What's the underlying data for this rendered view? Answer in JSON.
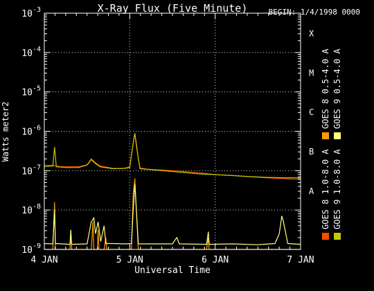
{
  "chart_data": {
    "type": "line",
    "title": "X-Ray Flux (Five Minute)",
    "begin_label": "BEGIN: 1/4/1998 0000",
    "xlabel": "Universal Time",
    "ylabel": "Watts meter2",
    "x_unit": "days since 4 JAN 1998 0000",
    "xlim": [
      0,
      3
    ],
    "x_ticks": [
      {
        "value": 0,
        "label": "4 JAN"
      },
      {
        "value": 1,
        "label": "5 JAN"
      },
      {
        "value": 2,
        "label": "6 JAN"
      },
      {
        "value": 3,
        "label": "7 JAN"
      }
    ],
    "y_scale": "log",
    "ylim_exponent": [
      -9,
      -3
    ],
    "y_ticks": [
      {
        "exp": -9,
        "base": "10",
        "sup": "-9"
      },
      {
        "exp": -8,
        "base": "10",
        "sup": "-8"
      },
      {
        "exp": -7,
        "base": "10",
        "sup": "-7"
      },
      {
        "exp": -6,
        "base": "10",
        "sup": "-6"
      },
      {
        "exp": -5,
        "base": "10",
        "sup": "-5"
      },
      {
        "exp": -4,
        "base": "10",
        "sup": "-4"
      },
      {
        "exp": -3,
        "base": "10",
        "sup": "-3"
      }
    ],
    "flare_classes": [
      {
        "label": "A",
        "exp": -8
      },
      {
        "label": "B",
        "exp": -7
      },
      {
        "label": "C",
        "exp": -6
      },
      {
        "label": "M",
        "exp": -5
      },
      {
        "label": "X",
        "exp": -4
      }
    ],
    "grid": "dotted at decades and day boundaries",
    "legend_placement": "right, vertical",
    "series": [
      {
        "name": "GOES 8 1.0-8.0 A",
        "color": "#ff4a00",
        "points": [
          [
            0,
            -6.86
          ],
          [
            0.1,
            -6.87
          ],
          [
            0.2,
            -6.9
          ],
          [
            0.25,
            -6.9
          ],
          [
            0.4,
            -6.9
          ],
          [
            0.45,
            -6.88
          ],
          [
            0.5,
            -6.85
          ],
          [
            0.55,
            -6.7
          ],
          [
            0.6,
            -6.8
          ],
          [
            0.65,
            -6.88
          ],
          [
            0.8,
            -6.94
          ],
          [
            0.9,
            -6.95
          ],
          [
            0.95,
            -6.93
          ],
          [
            1.0,
            -6.9
          ],
          [
            1.04,
            -6.3
          ],
          [
            1.06,
            -6.05
          ],
          [
            1.08,
            -6.35
          ],
          [
            1.1,
            -6.7
          ],
          [
            1.12,
            -6.93
          ],
          [
            1.2,
            -6.96
          ],
          [
            1.5,
            -7.0
          ],
          [
            1.8,
            -7.05
          ],
          [
            2.0,
            -7.1
          ],
          [
            2.2,
            -7.12
          ],
          [
            2.4,
            -7.15
          ],
          [
            2.6,
            -7.18
          ],
          [
            2.8,
            -7.2
          ],
          [
            2.95,
            -7.22
          ],
          [
            3.0,
            -7.2
          ]
        ]
      },
      {
        "name": "GOES 8 0.5-4.0 A",
        "color": "#ff9a00",
        "points": [
          [
            0,
            -9.0
          ],
          [
            0.1,
            -9.0
          ],
          [
            0.12,
            -7.8
          ],
          [
            0.13,
            -9.0
          ],
          [
            0.3,
            -9.0
          ],
          [
            0.31,
            -8.6
          ],
          [
            0.32,
            -9.0
          ],
          [
            0.55,
            -9.0
          ],
          [
            0.57,
            -8.3
          ],
          [
            0.58,
            -9.0
          ],
          [
            0.62,
            -9.0
          ],
          [
            0.63,
            -8.5
          ],
          [
            0.64,
            -9.0
          ],
          [
            0.7,
            -9.0
          ],
          [
            0.72,
            -8.7
          ],
          [
            0.73,
            -9.0
          ],
          [
            1.02,
            -9.0
          ],
          [
            1.04,
            -7.6
          ],
          [
            1.06,
            -7.2
          ],
          [
            1.1,
            -9.0
          ],
          [
            1.9,
            -9.0
          ],
          [
            1.92,
            -8.7
          ],
          [
            1.93,
            -9.0
          ],
          [
            3.0,
            -9.0
          ]
        ]
      },
      {
        "name": "GOES 9 1.0-8.0 A",
        "color": "#c8c800",
        "points": [
          [
            0,
            -6.9
          ],
          [
            0.1,
            -6.88
          ],
          [
            0.12,
            -6.4
          ],
          [
            0.14,
            -6.9
          ],
          [
            0.25,
            -6.92
          ],
          [
            0.4,
            -6.92
          ],
          [
            0.5,
            -6.86
          ],
          [
            0.55,
            -6.72
          ],
          [
            0.6,
            -6.82
          ],
          [
            0.65,
            -6.9
          ],
          [
            0.8,
            -6.95
          ],
          [
            0.95,
            -6.94
          ],
          [
            1.0,
            -6.92
          ],
          [
            1.04,
            -6.3
          ],
          [
            1.06,
            -6.05
          ],
          [
            1.08,
            -6.4
          ],
          [
            1.12,
            -6.95
          ],
          [
            1.5,
            -7.02
          ],
          [
            1.8,
            -7.08
          ],
          [
            2.0,
            -7.1
          ],
          [
            2.4,
            -7.15
          ],
          [
            2.6,
            -7.17
          ],
          [
            2.8,
            -7.18
          ],
          [
            3.0,
            -7.18
          ]
        ]
      },
      {
        "name": "GOES 9 0.5-4.0 A",
        "color": "#ffff80",
        "points": [
          [
            0,
            -8.85
          ],
          [
            0.1,
            -8.86
          ],
          [
            0.12,
            -8.0
          ],
          [
            0.13,
            -8.85
          ],
          [
            0.3,
            -8.87
          ],
          [
            0.31,
            -8.5
          ],
          [
            0.32,
            -8.87
          ],
          [
            0.5,
            -8.86
          ],
          [
            0.55,
            -8.3
          ],
          [
            0.58,
            -8.2
          ],
          [
            0.6,
            -8.6
          ],
          [
            0.63,
            -8.3
          ],
          [
            0.66,
            -8.8
          ],
          [
            0.7,
            -8.4
          ],
          [
            0.72,
            -8.85
          ],
          [
            0.8,
            -8.85
          ],
          [
            0.95,
            -8.86
          ],
          [
            1.02,
            -8.85
          ],
          [
            1.04,
            -8.0
          ],
          [
            1.06,
            -7.35
          ],
          [
            1.1,
            -8.86
          ],
          [
            1.5,
            -8.86
          ],
          [
            1.55,
            -8.7
          ],
          [
            1.58,
            -8.86
          ],
          [
            1.9,
            -8.87
          ],
          [
            1.92,
            -8.55
          ],
          [
            1.93,
            -8.87
          ],
          [
            2.2,
            -8.86
          ],
          [
            2.5,
            -8.88
          ],
          [
            2.7,
            -8.85
          ],
          [
            2.75,
            -8.6
          ],
          [
            2.78,
            -8.15
          ],
          [
            2.8,
            -8.3
          ],
          [
            2.85,
            -8.85
          ],
          [
            3.0,
            -8.87
          ]
        ]
      }
    ]
  }
}
